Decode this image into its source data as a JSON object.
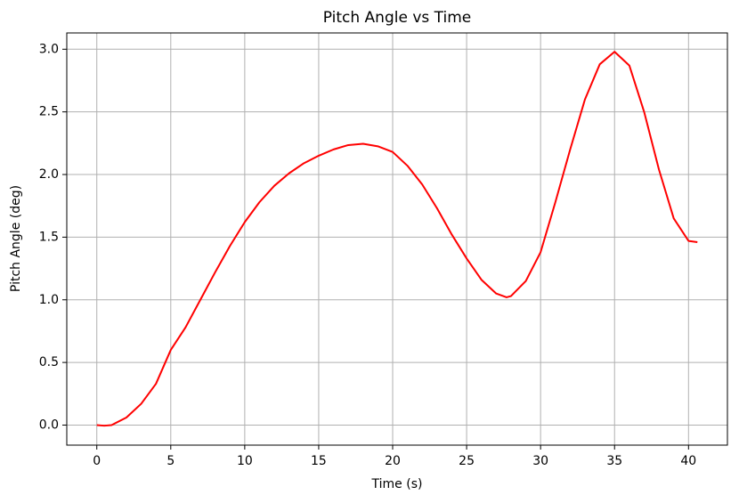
{
  "chart_data": {
    "type": "line",
    "title": "Pitch Angle vs Time",
    "x_label": "Time (s)",
    "y_label": "Pitch Angle (deg)",
    "x": [
      0,
      0.5,
      1,
      2,
      3,
      4,
      5,
      6,
      7,
      8,
      9,
      10,
      11,
      12,
      13,
      14,
      15,
      16,
      17,
      18,
      19,
      20,
      21,
      22,
      23,
      24,
      25,
      26,
      27,
      27.7,
      28,
      29,
      30,
      31,
      32,
      33,
      34,
      35,
      36,
      37,
      38,
      39,
      40,
      40.6
    ],
    "series": [
      {
        "color": "#ff0000",
        "values": [
          0,
          -0.005,
          0.0,
          0.06,
          0.17,
          0.33,
          0.6,
          0.78,
          1.0,
          1.22,
          1.43,
          1.62,
          1.78,
          1.91,
          2.01,
          2.09,
          2.15,
          2.2,
          2.235,
          2.245,
          2.225,
          2.18,
          2.07,
          1.92,
          1.73,
          1.52,
          1.33,
          1.16,
          1.05,
          1.02,
          1.03,
          1.15,
          1.38,
          1.78,
          2.2,
          2.6,
          2.88,
          2.98,
          2.87,
          2.5,
          2.04,
          1.65,
          1.47,
          1.46
        ]
      }
    ],
    "xlim": [
      -2.03,
      42.63
    ],
    "xticks": [
      0,
      5,
      10,
      15,
      20,
      25,
      30,
      35,
      40
    ],
    "ylim": [
      -0.16,
      3.13
    ],
    "yticks": [
      {
        "value": 0,
        "label": "0.0"
      },
      0.5,
      {
        "value": 1,
        "label": "1.0"
      },
      1.5,
      {
        "value": 2,
        "label": "2.0"
      },
      2.5,
      {
        "value": 3,
        "label": "3.0"
      }
    ],
    "grid": true
  }
}
